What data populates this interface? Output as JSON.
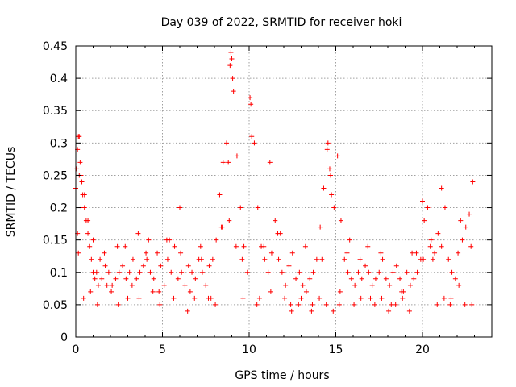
{
  "chart_data": {
    "type": "scatter",
    "title": "Day 039 of 2022, SRMTID for receiver hoki",
    "xlabel": "GPS time / hours",
    "ylabel": "SRMTID / TECUs",
    "xlim": [
      0,
      24
    ],
    "ylim": [
      0,
      0.45
    ],
    "xticks": [
      0,
      5,
      10,
      15,
      20
    ],
    "xtick_labels": [
      "0",
      "5",
      "10",
      "15",
      "20"
    ],
    "yticks": [
      0,
      0.05,
      0.1,
      0.15,
      0.2,
      0.25,
      0.3,
      0.35,
      0.4,
      0.45
    ],
    "ytick_labels": [
      "0",
      "0.05",
      "0.1",
      "0.15",
      "0.2",
      "0.25",
      "0.3",
      "0.35",
      "0.4",
      "0.45"
    ],
    "grid": true,
    "marker": "+",
    "color": "#ff0000",
    "series": [
      {
        "name": "SRMTID",
        "x": [
          0.0,
          0.05,
          0.1,
          0.15,
          0.2,
          0.25,
          0.3,
          0.35,
          0.4,
          0.5,
          0.6,
          0.7,
          0.8,
          0.9,
          1.0,
          1.1,
          1.2,
          1.3,
          1.5,
          1.7,
          1.9,
          2.1,
          2.3,
          2.5,
          2.7,
          2.9,
          3.1,
          3.3,
          3.5,
          3.7,
          3.9,
          4.1,
          4.3,
          4.5,
          4.7,
          4.9,
          5.1,
          5.3,
          5.5,
          5.7,
          5.9,
          6.1,
          6.3,
          6.5,
          6.7,
          6.9,
          7.1,
          7.3,
          7.5,
          7.7,
          7.9,
          8.1,
          8.3,
          8.5,
          8.7,
          8.9,
          9.0,
          9.1,
          9.3,
          9.5,
          9.7,
          9.9,
          10.1,
          10.3,
          10.5,
          10.7,
          10.9,
          11.1,
          11.3,
          11.5,
          11.7,
          11.9,
          12.1,
          12.3,
          12.5,
          12.7,
          12.9,
          13.1,
          13.3,
          13.5,
          13.7,
          13.9,
          14.1,
          14.3,
          14.5,
          14.7,
          14.9,
          15.1,
          15.3,
          15.5,
          15.7,
          15.9,
          16.1,
          16.3,
          16.5,
          16.7,
          16.9,
          17.1,
          17.3,
          17.5,
          17.7,
          17.9,
          18.1,
          18.3,
          18.5,
          18.7,
          18.9,
          19.1,
          19.3,
          19.5,
          19.7,
          19.9,
          20.1,
          20.3,
          20.5,
          20.7,
          20.9,
          21.1,
          21.3,
          21.5,
          21.7,
          21.9,
          22.1,
          22.3,
          22.5,
          22.7,
          22.9,
          0.1,
          0.2,
          0.3,
          0.5,
          0.7,
          1.0,
          1.4,
          1.8,
          2.4,
          3.0,
          3.6,
          4.2,
          4.8,
          5.4,
          6.0,
          6.6,
          7.2,
          7.8,
          8.4,
          8.8,
          8.95,
          9.05,
          9.6,
          10.05,
          10.15,
          10.6,
          11.2,
          11.8,
          12.4,
          13.0,
          13.6,
          14.2,
          14.55,
          14.65,
          14.75,
          15.2,
          15.8,
          16.4,
          17.0,
          17.6,
          18.2,
          18.8,
          19.4,
          20.0,
          20.6,
          21.1,
          21.6,
          22.2,
          22.8,
          0.15,
          0.45,
          0.85,
          1.25,
          1.65,
          2.05,
          2.45,
          2.85,
          3.25,
          3.65,
          4.05,
          4.45,
          4.85,
          5.25,
          5.65,
          6.05,
          6.45,
          6.85,
          7.25,
          7.65,
          8.05,
          8.45,
          8.85,
          9.25,
          9.65,
          10.45,
          10.85,
          11.25,
          11.65,
          12.05,
          12.45,
          12.85,
          13.25,
          13.65,
          14.05,
          14.45,
          14.85,
          15.25,
          15.65,
          16.05,
          16.45,
          16.85,
          17.25,
          17.65,
          18.05,
          18.45,
          18.85,
          19.25,
          19.65,
          20.05,
          20.45,
          20.85,
          21.25,
          21.65,
          22.05,
          22.45,
          22.85
        ],
        "y": [
          0.23,
          0.26,
          0.29,
          0.31,
          0.31,
          0.27,
          0.25,
          0.24,
          0.22,
          0.2,
          0.18,
          0.16,
          0.14,
          0.12,
          0.1,
          0.09,
          0.1,
          0.08,
          0.09,
          0.11,
          0.1,
          0.08,
          0.09,
          0.1,
          0.11,
          0.09,
          0.1,
          0.12,
          0.09,
          0.1,
          0.11,
          0.12,
          0.1,
          0.09,
          0.13,
          0.11,
          0.08,
          0.12,
          0.1,
          0.14,
          0.09,
          0.1,
          0.08,
          0.11,
          0.1,
          0.09,
          0.12,
          0.1,
          0.08,
          0.11,
          0.12,
          0.15,
          0.22,
          0.27,
          0.3,
          0.42,
          0.43,
          0.38,
          0.28,
          0.2,
          0.14,
          0.1,
          0.36,
          0.3,
          0.2,
          0.14,
          0.12,
          0.1,
          0.13,
          0.18,
          0.12,
          0.1,
          0.08,
          0.11,
          0.13,
          0.09,
          0.1,
          0.08,
          0.07,
          0.09,
          0.1,
          0.12,
          0.17,
          0.23,
          0.29,
          0.25,
          0.2,
          0.28,
          0.18,
          0.12,
          0.1,
          0.09,
          0.08,
          0.1,
          0.09,
          0.11,
          0.1,
          0.08,
          0.09,
          0.1,
          0.12,
          0.09,
          0.08,
          0.1,
          0.11,
          0.09,
          0.07,
          0.1,
          0.08,
          0.09,
          0.1,
          0.12,
          0.18,
          0.2,
          0.15,
          0.13,
          0.16,
          0.14,
          0.2,
          0.12,
          0.1,
          0.09,
          0.08,
          0.15,
          0.17,
          0.19,
          0.24,
          0.16,
          0.25,
          0.2,
          0.22,
          0.18,
          0.15,
          0.12,
          0.08,
          0.14,
          0.06,
          0.16,
          0.15,
          0.07,
          0.15,
          0.2,
          0.07,
          0.14,
          0.06,
          0.17,
          0.27,
          0.44,
          0.4,
          0.12,
          0.37,
          0.31,
          0.06,
          0.27,
          0.16,
          0.05,
          0.06,
          0.04,
          0.12,
          0.3,
          0.26,
          0.22,
          0.05,
          0.15,
          0.12,
          0.06,
          0.13,
          0.05,
          0.07,
          0.13,
          0.21,
          0.12,
          0.23,
          0.05,
          0.18,
          0.14,
          0.13,
          0.06,
          0.07,
          0.05,
          0.13,
          0.07,
          0.05,
          0.14,
          0.08,
          0.06,
          0.13,
          0.07,
          0.05,
          0.15,
          0.06,
          0.13,
          0.04,
          0.06,
          0.12,
          0.06,
          0.05,
          0.17,
          0.18,
          0.14,
          0.06,
          0.05,
          0.14,
          0.07,
          0.16,
          0.06,
          0.04,
          0.05,
          0.14,
          0.05,
          0.06,
          0.05,
          0.04,
          0.07,
          0.13,
          0.05,
          0.06,
          0.14,
          0.05,
          0.06,
          0.04,
          0.05,
          0.06,
          0.04,
          0.13,
          0.12,
          0.14,
          0.05,
          0.06,
          0.06,
          0.13,
          0.05,
          0.05
        ]
      }
    ]
  }
}
